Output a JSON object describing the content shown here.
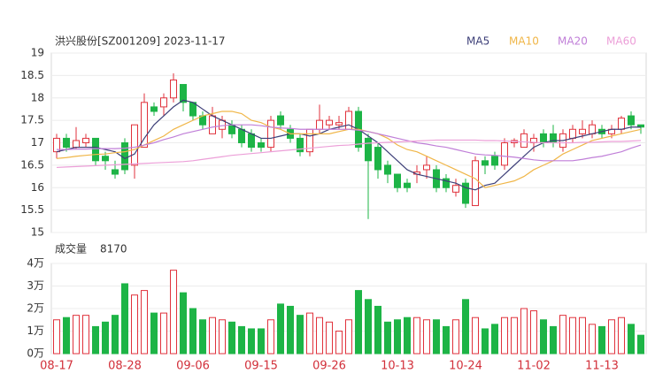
{
  "chart_data": {
    "type": "candlestick",
    "title": "洪兴股份[SZ001209] 2023-11-17",
    "categories": [
      "08-17",
      null,
      null,
      null,
      null,
      null,
      null,
      "08-28",
      null,
      null,
      null,
      null,
      null,
      null,
      "09-06",
      null,
      null,
      null,
      null,
      null,
      null,
      "09-15",
      null,
      null,
      null,
      null,
      null,
      null,
      "09-26",
      null,
      null,
      null,
      null,
      null,
      null,
      "10-13",
      null,
      null,
      null,
      null,
      null,
      null,
      "10-24",
      null,
      null,
      null,
      null,
      null,
      null,
      "11-02",
      null,
      null,
      null,
      null,
      null,
      null,
      "11-13",
      null,
      null,
      null,
      null
    ],
    "open": [
      16.8,
      17.1,
      16.9,
      17.0,
      17.1,
      16.7,
      16.4,
      17.0,
      16.5,
      16.9,
      17.8,
      17.8,
      18.0,
      18.3,
      17.9,
      17.6,
      17.2,
      17.3,
      17.4,
      17.3,
      17.2,
      17.0,
      16.9,
      17.6,
      17.3,
      17.1,
      16.8,
      17.3,
      17.4,
      17.4,
      17.3,
      17.7,
      17.1,
      16.9,
      16.5,
      16.3,
      16.1,
      16.3,
      16.4,
      16.4,
      16.2,
      15.9,
      16.1,
      15.6,
      16.6,
      16.7,
      16.5,
      17.0,
      16.9,
      17.0,
      17.2,
      17.2,
      16.9,
      17.1,
      17.2,
      17.2,
      17.3,
      17.2,
      17.3,
      17.6,
      17.4
    ],
    "high": [
      17.2,
      17.2,
      17.35,
      17.2,
      17.1,
      16.8,
      16.6,
      17.1,
      17.4,
      18.1,
      17.9,
      18.1,
      18.55,
      18.3,
      17.9,
      17.7,
      17.8,
      17.6,
      17.5,
      17.4,
      17.3,
      17.1,
      17.6,
      17.7,
      17.4,
      17.2,
      17.3,
      17.85,
      17.6,
      17.6,
      17.8,
      17.8,
      17.2,
      17.0,
      16.6,
      16.3,
      16.2,
      16.5,
      16.7,
      16.5,
      16.3,
      16.2,
      16.2,
      16.7,
      16.7,
      16.8,
      17.1,
      17.1,
      17.3,
      17.2,
      17.3,
      17.4,
      17.3,
      17.4,
      17.5,
      17.5,
      17.4,
      17.4,
      17.6,
      17.7,
      17.4
    ],
    "low": [
      16.65,
      16.8,
      16.85,
      16.9,
      16.5,
      16.4,
      16.2,
      16.3,
      16.2,
      16.9,
      17.6,
      17.6,
      17.9,
      17.7,
      17.5,
      17.3,
      17.2,
      17.1,
      17.1,
      16.9,
      16.8,
      16.8,
      16.8,
      17.3,
      17.0,
      16.7,
      16.7,
      17.2,
      17.3,
      17.3,
      17.3,
      16.8,
      15.3,
      16.2,
      16.1,
      15.9,
      15.9,
      16.1,
      16.2,
      15.9,
      15.9,
      15.8,
      15.55,
      15.6,
      16.3,
      16.4,
      16.4,
      16.9,
      16.9,
      16.8,
      16.9,
      16.9,
      16.8,
      17.0,
      17.1,
      17.1,
      17.1,
      17.1,
      17.2,
      17.3,
      17.2
    ],
    "close": [
      17.1,
      16.9,
      17.05,
      17.1,
      16.6,
      16.6,
      16.3,
      16.4,
      17.4,
      17.9,
      17.7,
      18.0,
      18.4,
      17.9,
      17.6,
      17.4,
      17.6,
      17.5,
      17.2,
      17.0,
      16.9,
      16.9,
      17.5,
      17.4,
      17.1,
      16.8,
      17.3,
      17.5,
      17.5,
      17.45,
      17.7,
      16.9,
      16.6,
      16.4,
      16.3,
      16.0,
      16.0,
      16.35,
      16.5,
      16.0,
      16.0,
      16.05,
      15.65,
      16.6,
      16.5,
      16.5,
      17.0,
      17.05,
      17.2,
      17.1,
      17.0,
      17.0,
      17.2,
      17.3,
      17.3,
      17.4,
      17.2,
      17.3,
      17.55,
      17.4,
      17.35
    ],
    "up_color": "#e0323c",
    "down_color": "#1db446",
    "series": [
      {
        "name": "MA5",
        "color": "#3d3f78",
        "values": [
          16.8,
          16.85,
          16.9,
          16.9,
          16.9,
          16.85,
          16.8,
          16.65,
          16.75,
          17.1,
          17.4,
          17.6,
          17.8,
          17.95,
          17.9,
          17.75,
          17.6,
          17.5,
          17.4,
          17.3,
          17.2,
          17.1,
          17.1,
          17.15,
          17.2,
          17.2,
          17.15,
          17.2,
          17.3,
          17.35,
          17.4,
          17.3,
          17.15,
          17.0,
          16.8,
          16.6,
          16.4,
          16.3,
          16.25,
          16.2,
          16.15,
          16.1,
          16.0,
          15.95,
          16.05,
          16.1,
          16.3,
          16.5,
          16.7,
          16.9,
          17.0,
          17.05,
          17.05,
          17.1,
          17.15,
          17.2,
          17.25,
          17.3,
          17.3,
          17.35,
          17.35
        ]
      },
      {
        "name": "MA10",
        "color": "#f0b648",
        "values": [
          16.65,
          16.67,
          16.7,
          16.72,
          16.74,
          16.75,
          16.78,
          16.8,
          16.85,
          16.95,
          17.05,
          17.15,
          17.3,
          17.4,
          17.5,
          17.6,
          17.65,
          17.7,
          17.7,
          17.65,
          17.5,
          17.45,
          17.35,
          17.3,
          17.2,
          17.2,
          17.2,
          17.2,
          17.2,
          17.25,
          17.3,
          17.3,
          17.25,
          17.2,
          17.1,
          16.95,
          16.85,
          16.8,
          16.7,
          16.6,
          16.5,
          16.4,
          16.3,
          16.2,
          16.0,
          16.05,
          16.1,
          16.15,
          16.25,
          16.4,
          16.5,
          16.6,
          16.75,
          16.85,
          16.95,
          17.05,
          17.1,
          17.15,
          17.2,
          17.25,
          17.3
        ]
      },
      {
        "name": "MA20",
        "color": "#c07fd8",
        "values": [
          16.85,
          16.85,
          16.86,
          16.86,
          16.87,
          16.87,
          16.87,
          16.88,
          16.9,
          16.95,
          17.0,
          17.07,
          17.13,
          17.2,
          17.25,
          17.3,
          17.35,
          17.38,
          17.4,
          17.4,
          17.4,
          17.38,
          17.35,
          17.33,
          17.32,
          17.3,
          17.3,
          17.3,
          17.3,
          17.3,
          17.3,
          17.28,
          17.25,
          17.2,
          17.15,
          17.1,
          17.05,
          17.0,
          16.97,
          16.93,
          16.9,
          16.85,
          16.8,
          16.75,
          16.73,
          16.72,
          16.7,
          16.68,
          16.65,
          16.62,
          16.6,
          16.6,
          16.6,
          16.6,
          16.63,
          16.67,
          16.7,
          16.75,
          16.8,
          16.88,
          16.95
        ]
      },
      {
        "name": "MA60",
        "color": "#ec9fd8",
        "values": [
          16.45,
          16.46,
          16.47,
          16.48,
          16.49,
          16.5,
          16.51,
          16.52,
          16.53,
          16.54,
          16.55,
          16.56,
          16.57,
          16.58,
          16.6,
          16.63,
          16.66,
          16.69,
          16.72,
          16.74,
          16.76,
          16.78,
          16.8,
          16.82,
          16.84,
          16.86,
          16.88,
          16.9,
          16.92,
          16.94,
          16.95,
          16.97,
          16.99,
          17.0,
          17.01,
          17.02,
          17.03,
          17.04,
          17.05,
          17.06,
          17.06,
          17.06,
          17.06,
          17.06,
          17.05,
          17.05,
          17.04,
          17.03,
          17.02,
          17.01,
          17.0,
          17.0,
          17.0,
          17.0,
          17.01,
          17.01,
          17.02,
          17.03,
          17.03,
          17.04,
          17.05
        ]
      }
    ],
    "ylim": [
      15,
      19
    ],
    "yticks": [
      15,
      15.5,
      16,
      16.5,
      17,
      17.5,
      18,
      18.5,
      19
    ],
    "volume": {
      "title": "成交量",
      "values": [
        1.5,
        1.6,
        1.7,
        1.7,
        1.2,
        1.4,
        1.7,
        3.1,
        2.6,
        2.8,
        1.8,
        1.8,
        3.7,
        2.7,
        2.0,
        1.5,
        1.6,
        1.5,
        1.4,
        1.2,
        1.1,
        1.1,
        1.5,
        2.2,
        2.1,
        1.7,
        1.8,
        1.6,
        1.4,
        1.0,
        1.5,
        2.8,
        2.4,
        2.1,
        1.4,
        1.5,
        1.6,
        1.6,
        1.5,
        1.5,
        1.2,
        1.5,
        2.4,
        1.6,
        1.1,
        1.3,
        1.6,
        1.6,
        2.0,
        1.9,
        1.5,
        1.2,
        1.7,
        1.6,
        1.6,
        1.3,
        1.2,
        1.5,
        1.6,
        1.3,
        0.817
      ],
      "value_labels": [
        null,
        null,
        null,
        null,
        null,
        null,
        null,
        null,
        null,
        null,
        null,
        null,
        null,
        null,
        null,
        null,
        null,
        null,
        null,
        null,
        null,
        null,
        null,
        null,
        null,
        null,
        null,
        null,
        null,
        null,
        null,
        null,
        null,
        null,
        null,
        null,
        null,
        null,
        null,
        null,
        null,
        null,
        null,
        null,
        null,
        null,
        null,
        null,
        null,
        null,
        null,
        null,
        null,
        null,
        null,
        null,
        null,
        null,
        null,
        null,
        "8170"
      ],
      "ylim": [
        0,
        4
      ],
      "yticks": [
        {
          "value": 0,
          "label": "0万"
        },
        {
          "value": 1,
          "label": "1万"
        },
        {
          "value": 2,
          "label": "2万"
        },
        {
          "value": 3,
          "label": "3万"
        },
        {
          "value": 4,
          "label": "4万"
        }
      ]
    }
  }
}
